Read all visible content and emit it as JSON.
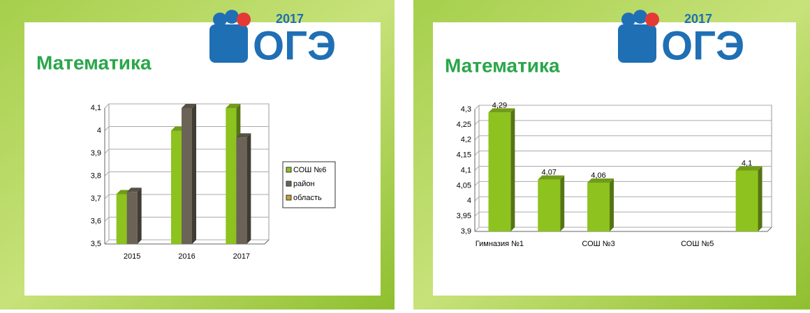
{
  "chart_data": [
    {
      "type": "bar",
      "title": "Математика",
      "logo": {
        "year": "2017",
        "text": "ОГЭ"
      },
      "categories": [
        "2015",
        "2016",
        "2017"
      ],
      "series": [
        {
          "name": "СОШ №6",
          "color": "#8dc21f",
          "values": [
            3.72,
            4.0,
            4.1
          ]
        },
        {
          "name": "район",
          "color": "#6b6456",
          "values": [
            3.73,
            4.1,
            3.97
          ]
        },
        {
          "name": "область",
          "color": "#c8a030",
          "values": [
            null,
            null,
            null
          ]
        }
      ],
      "ylim": [
        3.5,
        4.1
      ],
      "yticks": [
        {
          "value": 3.5,
          "label": "3,5"
        },
        {
          "value": 3.6,
          "label": "3,6"
        },
        {
          "value": 3.7,
          "label": "3,7"
        },
        {
          "value": 3.8,
          "label": "3,8"
        },
        {
          "value": 3.9,
          "label": "3,9"
        },
        4,
        {
          "value": 4.1,
          "label": "4,1"
        }
      ],
      "grid": true,
      "legend": "right"
    },
    {
      "type": "bar",
      "title": "Математика",
      "logo": {
        "year": "2017",
        "text": "ОГЭ"
      },
      "categories": [
        "Гимназия №1",
        null,
        "СОШ №3",
        null,
        "СОШ №5",
        null
      ],
      "series": [
        {
          "name": "Математика",
          "color": "#8dc21f",
          "values": [
            4.29,
            4.07,
            4.06,
            null,
            null,
            4.1
          ],
          "value_labels": [
            "4,29",
            "4,07",
            "4,06",
            null,
            null,
            "4,1"
          ]
        }
      ],
      "ylim": [
        3.9,
        4.3
      ],
      "yticks": [
        {
          "value": 3.9,
          "label": "3,9"
        },
        {
          "value": 3.95,
          "label": "3,95"
        },
        4,
        {
          "value": 4.05,
          "label": "4,05"
        },
        {
          "value": 4.1,
          "label": "4,1"
        },
        {
          "value": 4.15,
          "label": "4,15"
        },
        {
          "value": 4.2,
          "label": "4,2"
        },
        {
          "value": 4.25,
          "label": "4,25"
        },
        {
          "value": 4.3,
          "label": "4,3"
        }
      ],
      "grid": true
    }
  ]
}
